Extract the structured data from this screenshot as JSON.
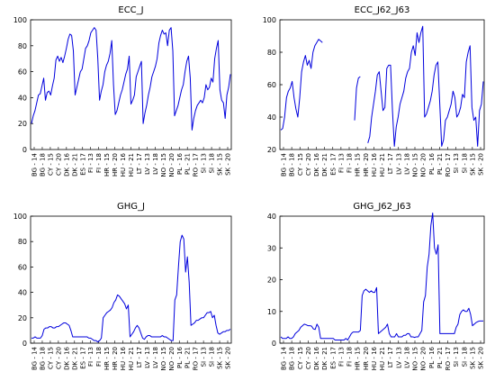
{
  "chart_data": [
    {
      "type": "line",
      "title": "ECC_J",
      "ylim": [
        0,
        100
      ],
      "yticks": [
        0,
        20,
        40,
        60,
        80,
        100
      ],
      "x_tick_labels": [
        "BG - 14",
        "BG - 18",
        "CY - 15",
        "CY - 20",
        "DK - 16",
        "DK - 21",
        "ES - 17",
        "FI - 13",
        "FI - 18",
        "HR - 15",
        "HR - 20",
        "HU - 16",
        "HU - 21",
        "LT - 17",
        "LV - 13",
        "LV - 18",
        "NO - 15",
        "NO - 20",
        "PL - 16",
        "PL - 21",
        "RO - 17",
        "SI - 13",
        "SI - 18",
        "SK - 15",
        "SK - 20"
      ],
      "color": "#0000dd",
      "series": [
        {
          "values": [
            20,
            26,
            30,
            36,
            42,
            43,
            49,
            55,
            38,
            44,
            45,
            42,
            49,
            55,
            69,
            72,
            68,
            71,
            67,
            72,
            78,
            85,
            89,
            88,
            76,
            42,
            48,
            54,
            60,
            62,
            70,
            78,
            80,
            84,
            90,
            92,
            94,
            92,
            70,
            38,
            45,
            50,
            60,
            65,
            68,
            74,
            84,
            50,
            27,
            30,
            36,
            42,
            46,
            52,
            58,
            62,
            72,
            35,
            38,
            42,
            56,
            60,
            64,
            68,
            20,
            28,
            34,
            42,
            48,
            56,
            60,
            64,
            70,
            82,
            88,
            92,
            89,
            90,
            80,
            92,
            94,
            76,
            26,
            30,
            34,
            40,
            46,
            50,
            60,
            68,
            72,
            55,
            15,
            24,
            30,
            34,
            36,
            38,
            36,
            40,
            50,
            46,
            48,
            55,
            52,
            70,
            78,
            84,
            46,
            38,
            36,
            24,
            42,
            48,
            58
          ]
        }
      ]
    },
    {
      "type": "line",
      "title": "ECC_J62_J63",
      "ylim": [
        20,
        100
      ],
      "yticks": [
        20,
        40,
        60,
        80,
        100
      ],
      "x_tick_labels": [
        "BG - 14",
        "BG - 18",
        "CY - 15",
        "CY - 20",
        "DK - 16",
        "DK - 21",
        "ES - 17",
        "FI - 13",
        "FI - 18",
        "HR - 15",
        "HR - 20",
        "HU - 16",
        "HU - 21",
        "LT - 17",
        "LV - 13",
        "LV - 18",
        "NO - 15",
        "NO - 20",
        "PL - 16",
        "PL - 21",
        "RO - 17",
        "SI - 13",
        "SI - 18",
        "SK - 15",
        "SK - 20"
      ],
      "color": "#0000dd",
      "series": [
        {
          "values": [
            32,
            33,
            40,
            52,
            56,
            58,
            62,
            52,
            45,
            40,
            52,
            68,
            74,
            78,
            72,
            75,
            70,
            80,
            84,
            86,
            88,
            87,
            86,
            null,
            null,
            null,
            null,
            null,
            null,
            null,
            null,
            null,
            null,
            null,
            null,
            null,
            null,
            null,
            null,
            38,
            58,
            64,
            65,
            null,
            null,
            null,
            24,
            28,
            40,
            48,
            56,
            66,
            68,
            56,
            44,
            46,
            70,
            72,
            72,
            44,
            22,
            34,
            40,
            48,
            52,
            56,
            64,
            68,
            70,
            80,
            84,
            78,
            92,
            86,
            92,
            96,
            40,
            42,
            46,
            50,
            56,
            66,
            72,
            74,
            48,
            22,
            26,
            38,
            40,
            44,
            48,
            56,
            52,
            40,
            42,
            46,
            54,
            52,
            74,
            80,
            84,
            46,
            38,
            40,
            22,
            44,
            48,
            62
          ]
        }
      ]
    },
    {
      "type": "line",
      "title": "GHG_J",
      "ylim": [
        0,
        100
      ],
      "yticks": [
        0,
        20,
        40,
        60,
        80,
        100
      ],
      "x_tick_labels": [
        "BG - 14",
        "BG - 18",
        "CY - 15",
        "CY - 20",
        "DK - 16",
        "DK - 21",
        "ES - 17",
        "FI - 13",
        "FI - 18",
        "HR - 15",
        "HR - 20",
        "HU - 16",
        "HU - 21",
        "LT - 17",
        "LV - 13",
        "LV - 18",
        "NO - 15",
        "NO - 20",
        "PL - 16",
        "PL - 21",
        "RO - 17",
        "SI - 13",
        "SI - 18",
        "SK - 15",
        "SK - 20"
      ],
      "color": "#0000dd",
      "series": [
        {
          "values": [
            4,
            4,
            5,
            4,
            4,
            4,
            6,
            11,
            12,
            12,
            13,
            13,
            12,
            12,
            13,
            13,
            14,
            15,
            16,
            16,
            15,
            14,
            10,
            5,
            5,
            5,
            5,
            5,
            5,
            5,
            5,
            5,
            4,
            4,
            3,
            2,
            2,
            1,
            2,
            4,
            20,
            22,
            24,
            25,
            26,
            28,
            32,
            34,
            38,
            37,
            35,
            33,
            31,
            27,
            30,
            5,
            7,
            9,
            12,
            14,
            12,
            8,
            4,
            3,
            5,
            6,
            6,
            5,
            5,
            5,
            5,
            5,
            5,
            6,
            5,
            5,
            4,
            3,
            2,
            2,
            34,
            38,
            60,
            80,
            85,
            82,
            56,
            68,
            48,
            14,
            15,
            16,
            18,
            18,
            19,
            20,
            20,
            22,
            24,
            24,
            25,
            20,
            22,
            14,
            8,
            7,
            8,
            9,
            9,
            10,
            10,
            11
          ]
        }
      ]
    },
    {
      "type": "line",
      "title": "GHG_J62_J63",
      "ylim": [
        0,
        40
      ],
      "yticks": [
        0,
        10,
        20,
        30,
        40
      ],
      "x_tick_labels": [
        "BG - 14",
        "BG - 18",
        "CY - 15",
        "CY - 20",
        "DK - 16",
        "DK - 21",
        "ES - 17",
        "FI - 13",
        "FI - 18",
        "HR - 15",
        "HR - 20",
        "HU - 16",
        "HU - 21",
        "LT - 17",
        "LV - 13",
        "LV - 18",
        "NO - 15",
        "NO - 20",
        "PL - 16",
        "PL - 21",
        "RO - 17",
        "SI - 13",
        "SI - 18",
        "SK - 15",
        "SK - 20"
      ],
      "color": "#0000dd",
      "series": [
        {
          "values": [
            2,
            1.5,
            1.5,
            1.5,
            2,
            1.5,
            1.5,
            2,
            3,
            3.5,
            4,
            5,
            5.5,
            6,
            5.8,
            5.5,
            5.5,
            5.4,
            4.5,
            4.3,
            6,
            5,
            1.5,
            1.5,
            1.5,
            1.5,
            1.5,
            1.5,
            1.5,
            1.5,
            1,
            1,
            1,
            1,
            1,
            1,
            1.5,
            1,
            2,
            3,
            3.5,
            3.5,
            3.5,
            3.5,
            4,
            15,
            16.5,
            17,
            16.5,
            16,
            16.5,
            16,
            16,
            17.5,
            3,
            3.5,
            4,
            4.5,
            5,
            6,
            3,
            2,
            2,
            2,
            3,
            2,
            2,
            2,
            2.5,
            2.5,
            3,
            3,
            2,
            2,
            1.8,
            2,
            2,
            3,
            4,
            13,
            15,
            24,
            28,
            37,
            41,
            30,
            28,
            31,
            3,
            3,
            3,
            3,
            3,
            3,
            3,
            3,
            3,
            5,
            6,
            9,
            10,
            10.5,
            10,
            10,
            11,
            9,
            5.5,
            6,
            6.5,
            6.8,
            7,
            7,
            7
          ]
        }
      ]
    }
  ]
}
